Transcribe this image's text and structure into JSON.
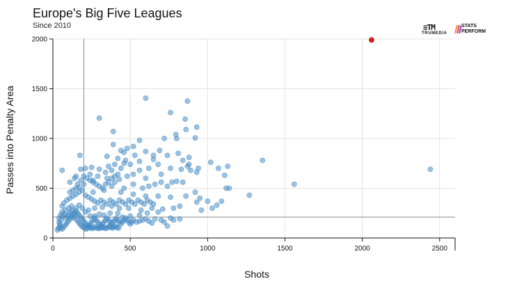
{
  "header": {
    "title": "Europe's Big Five Leagues",
    "subtitle": "Since 2010"
  },
  "logos": {
    "trumedia_mark": "≡TM",
    "trumedia_word": "TRUMEDIA",
    "stats_line1": "STATS",
    "stats_line2": "PERFORM"
  },
  "chart_data": {
    "type": "scatter",
    "title": "Europe's Big Five Leagues",
    "subtitle": "Since 2010",
    "xlabel": "Shots",
    "ylabel": "Passes into Penalty Area",
    "xlim": [
      0,
      2600
    ],
    "ylim": [
      0,
      2000
    ],
    "xticks": [
      0,
      500,
      1000,
      1500,
      2000,
      2500
    ],
    "yticks": [
      0,
      500,
      1000,
      1500,
      2000
    ],
    "grid": true,
    "reference_lines": {
      "x": 200,
      "y": 210
    },
    "colors": {
      "points": "#4a90c8",
      "points_stroke": "#2f78b5",
      "highlight": "#d32222",
      "grid": "#e3e3e3",
      "reference": "#888888"
    },
    "highlight": {
      "x": 2060,
      "y": 1990
    },
    "points": [
      [
        600,
        1405
      ],
      [
        870,
        1375
      ],
      [
        300,
        1205
      ],
      [
        760,
        1260
      ],
      [
        855,
        1195
      ],
      [
        930,
        1115
      ],
      [
        390,
        1070
      ],
      [
        860,
        1090
      ],
      [
        795,
        1040
      ],
      [
        800,
        1000
      ],
      [
        720,
        1000
      ],
      [
        920,
        1005
      ],
      [
        560,
        980
      ],
      [
        390,
        940
      ],
      [
        460,
        860
      ],
      [
        440,
        880
      ],
      [
        600,
        870
      ],
      [
        530,
        830
      ],
      [
        740,
        830
      ],
      [
        810,
        850
      ],
      [
        350,
        820
      ],
      [
        175,
        830
      ],
      [
        880,
        810
      ],
      [
        840,
        780
      ],
      [
        650,
        790
      ],
      [
        1355,
        780
      ],
      [
        1020,
        760
      ],
      [
        880,
        740
      ],
      [
        1130,
        720
      ],
      [
        460,
        750
      ],
      [
        500,
        740
      ],
      [
        680,
        740
      ],
      [
        870,
        720
      ],
      [
        940,
        700
      ],
      [
        760,
        700
      ],
      [
        1070,
        700
      ],
      [
        60,
        680
      ],
      [
        180,
        690
      ],
      [
        210,
        700
      ],
      [
        250,
        710
      ],
      [
        300,
        690
      ],
      [
        440,
        700
      ],
      [
        560,
        680
      ],
      [
        620,
        700
      ],
      [
        830,
        690
      ],
      [
        890,
        680
      ],
      [
        930,
        660
      ],
      [
        2440,
        690
      ],
      [
        1110,
        630
      ],
      [
        700,
        640
      ],
      [
        520,
        640
      ],
      [
        600,
        600
      ],
      [
        770,
        560
      ],
      [
        800,
        570
      ],
      [
        840,
        560
      ],
      [
        1560,
        540
      ],
      [
        110,
        560
      ],
      [
        260,
        580
      ],
      [
        430,
        590
      ],
      [
        350,
        600
      ],
      [
        240,
        640
      ],
      [
        150,
        620
      ],
      [
        480,
        620
      ],
      [
        290,
        620
      ],
      [
        660,
        540
      ],
      [
        740,
        520
      ],
      [
        1120,
        500
      ],
      [
        1140,
        500
      ],
      [
        920,
        460
      ],
      [
        1270,
        430
      ],
      [
        200,
        540
      ],
      [
        400,
        560
      ],
      [
        520,
        540
      ],
      [
        580,
        500
      ],
      [
        620,
        520
      ],
      [
        700,
        560
      ],
      [
        380,
        520
      ],
      [
        460,
        500
      ],
      [
        330,
        480
      ],
      [
        260,
        460
      ],
      [
        440,
        460
      ],
      [
        520,
        440
      ],
      [
        600,
        420
      ],
      [
        680,
        420
      ],
      [
        760,
        410
      ],
      [
        860,
        420
      ],
      [
        930,
        360
      ],
      [
        950,
        400
      ],
      [
        1000,
        370
      ],
      [
        1060,
        330
      ],
      [
        1090,
        370
      ],
      [
        1030,
        300
      ],
      [
        960,
        280
      ],
      [
        820,
        320
      ],
      [
        780,
        300
      ],
      [
        710,
        290
      ],
      [
        640,
        300
      ],
      [
        570,
        280
      ],
      [
        490,
        300
      ],
      [
        430,
        300
      ],
      [
        380,
        320
      ],
      [
        320,
        310
      ],
      [
        270,
        300
      ],
      [
        230,
        280
      ],
      [
        610,
        250
      ],
      [
        680,
        260
      ],
      [
        560,
        230
      ],
      [
        500,
        220
      ],
      [
        450,
        210
      ],
      [
        420,
        250
      ],
      [
        370,
        250
      ],
      [
        330,
        230
      ],
      [
        300,
        240
      ],
      [
        270,
        220
      ],
      [
        240,
        220
      ],
      [
        210,
        260
      ],
      [
        190,
        300
      ],
      [
        170,
        330
      ],
      [
        150,
        300
      ],
      [
        120,
        320
      ],
      [
        100,
        300
      ],
      [
        80,
        280
      ],
      [
        60,
        260
      ],
      [
        50,
        230
      ],
      [
        40,
        200
      ],
      [
        40,
        160
      ],
      [
        45,
        120
      ],
      [
        50,
        100
      ],
      [
        60,
        90
      ],
      [
        70,
        110
      ],
      [
        80,
        130
      ],
      [
        90,
        150
      ],
      [
        100,
        170
      ],
      [
        110,
        190
      ],
      [
        120,
        210
      ],
      [
        130,
        230
      ],
      [
        140,
        250
      ],
      [
        150,
        270
      ],
      [
        160,
        250
      ],
      [
        170,
        230
      ],
      [
        180,
        210
      ],
      [
        190,
        190
      ],
      [
        200,
        170
      ],
      [
        210,
        150
      ],
      [
        220,
        130
      ],
      [
        230,
        120
      ],
      [
        240,
        140
      ],
      [
        250,
        160
      ],
      [
        260,
        180
      ],
      [
        270,
        200
      ],
      [
        280,
        180
      ],
      [
        290,
        160
      ],
      [
        300,
        140
      ],
      [
        310,
        120
      ],
      [
        320,
        140
      ],
      [
        330,
        160
      ],
      [
        340,
        180
      ],
      [
        350,
        200
      ],
      [
        360,
        180
      ],
      [
        370,
        160
      ],
      [
        380,
        140
      ],
      [
        390,
        160
      ],
      [
        400,
        180
      ],
      [
        410,
        200
      ],
      [
        420,
        180
      ],
      [
        430,
        160
      ],
      [
        440,
        140
      ],
      [
        450,
        160
      ],
      [
        460,
        180
      ],
      [
        470,
        200
      ],
      [
        480,
        180
      ],
      [
        490,
        160
      ],
      [
        500,
        140
      ],
      [
        510,
        160
      ],
      [
        520,
        180
      ],
      [
        540,
        160
      ],
      [
        560,
        170
      ],
      [
        580,
        180
      ],
      [
        600,
        190
      ],
      [
        620,
        170
      ],
      [
        640,
        150
      ],
      [
        660,
        190
      ],
      [
        700,
        180
      ],
      [
        720,
        160
      ],
      [
        740,
        120
      ],
      [
        760,
        200
      ],
      [
        780,
        180
      ],
      [
        820,
        190
      ],
      [
        60,
        320
      ],
      [
        70,
        350
      ],
      [
        90,
        380
      ],
      [
        110,
        400
      ],
      [
        130,
        420
      ],
      [
        150,
        440
      ],
      [
        170,
        460
      ],
      [
        190,
        480
      ],
      [
        210,
        430
      ],
      [
        230,
        410
      ],
      [
        250,
        390
      ],
      [
        270,
        370
      ],
      [
        290,
        350
      ],
      [
        310,
        380
      ],
      [
        330,
        360
      ],
      [
        350,
        340
      ],
      [
        370,
        380
      ],
      [
        390,
        360
      ],
      [
        410,
        340
      ],
      [
        430,
        380
      ],
      [
        450,
        360
      ],
      [
        470,
        340
      ],
      [
        490,
        380
      ],
      [
        510,
        360
      ],
      [
        530,
        340
      ],
      [
        550,
        380
      ],
      [
        570,
        360
      ],
      [
        590,
        340
      ],
      [
        610,
        380
      ],
      [
        630,
        360
      ],
      [
        650,
        340
      ],
      [
        30,
        80
      ],
      [
        35,
        100
      ],
      [
        45,
        140
      ],
      [
        55,
        180
      ],
      [
        65,
        220
      ],
      [
        75,
        240
      ],
      [
        85,
        200
      ],
      [
        95,
        220
      ],
      [
        105,
        240
      ],
      [
        115,
        260
      ],
      [
        125,
        280
      ],
      [
        135,
        200
      ],
      [
        145,
        220
      ],
      [
        155,
        180
      ],
      [
        165,
        160
      ],
      [
        175,
        140
      ],
      [
        185,
        120
      ],
      [
        195,
        110
      ],
      [
        205,
        100
      ],
      [
        215,
        90
      ],
      [
        225,
        100
      ],
      [
        235,
        110
      ],
      [
        245,
        100
      ],
      [
        255,
        95
      ],
      [
        265,
        105
      ],
      [
        275,
        115
      ],
      [
        285,
        100
      ],
      [
        295,
        95
      ],
      [
        305,
        105
      ],
      [
        315,
        100
      ],
      [
        325,
        110
      ],
      [
        335,
        100
      ],
      [
        345,
        95
      ],
      [
        355,
        110
      ],
      [
        365,
        120
      ],
      [
        375,
        105
      ],
      [
        385,
        100
      ],
      [
        395,
        110
      ],
      [
        405,
        120
      ],
      [
        415,
        105
      ],
      [
        425,
        100
      ],
      [
        140,
        600
      ],
      [
        160,
        540
      ],
      [
        180,
        580
      ],
      [
        200,
        620
      ],
      [
        220,
        600
      ],
      [
        240,
        580
      ],
      [
        260,
        560
      ],
      [
        280,
        540
      ],
      [
        300,
        520
      ],
      [
        320,
        500
      ],
      [
        340,
        540
      ],
      [
        360,
        560
      ],
      [
        380,
        600
      ],
      [
        400,
        620
      ],
      [
        420,
        640
      ],
      [
        340,
        660
      ],
      [
        380,
        680
      ],
      [
        360,
        720
      ],
      [
        400,
        740
      ],
      [
        420,
        800
      ],
      [
        470,
        780
      ],
      [
        560,
        770
      ],
      [
        650,
        830
      ],
      [
        690,
        880
      ],
      [
        480,
        900
      ],
      [
        520,
        920
      ],
      [
        150,
        500
      ],
      [
        170,
        510
      ],
      [
        130,
        480
      ],
      [
        110,
        460
      ]
    ]
  }
}
